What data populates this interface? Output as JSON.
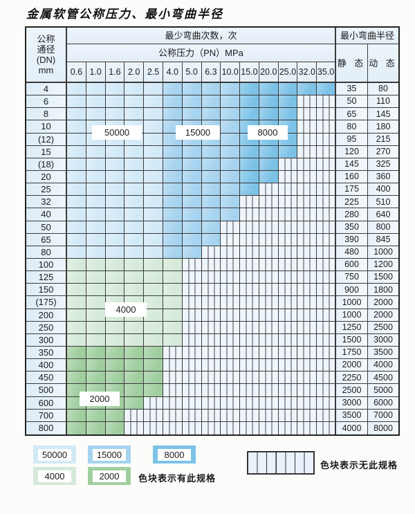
{
  "title": "金属软管公称压力、最小弯曲半径",
  "table": {
    "header": {
      "dn_label_lines": [
        "公称",
        "通径",
        "(DN)",
        "mm"
      ],
      "cycles_label": "最少弯曲次数，次",
      "pressure_label": "公称压力（PN）MPa",
      "pressures": [
        "0.6",
        "1.0",
        "1.6",
        "2.0",
        "2.5",
        "4.0",
        "5.0",
        "6.3",
        "10.0",
        "15.0",
        "20.0",
        "25.0",
        "32.0",
        "35.0"
      ],
      "radius_label": "最小弯曲半径",
      "static_label": "静 态",
      "dynamic_label": "动 态"
    },
    "overlay_labels": [
      {
        "text": "50000"
      },
      {
        "text": "15000"
      },
      {
        "text": "8000"
      },
      {
        "text": "4000"
      },
      {
        "text": "2000"
      }
    ],
    "rows": [
      {
        "dn": "4",
        "colored": 14,
        "zone": "blue",
        "static": "35",
        "dynamic": "80"
      },
      {
        "dn": "6",
        "colored": 12,
        "zone": "blue",
        "static": "50",
        "dynamic": "110"
      },
      {
        "dn": "8",
        "colored": 12,
        "zone": "blue",
        "static": "65",
        "dynamic": "145"
      },
      {
        "dn": "10",
        "colored": 12,
        "zone": "blue",
        "static": "80",
        "dynamic": "180"
      },
      {
        "dn": "(12)",
        "colored": 12,
        "zone": "blue",
        "static": "95",
        "dynamic": "215"
      },
      {
        "dn": "15",
        "colored": 12,
        "zone": "blue",
        "static": "120",
        "dynamic": "270"
      },
      {
        "dn": "(18)",
        "colored": 11,
        "zone": "blue",
        "static": "145",
        "dynamic": "325"
      },
      {
        "dn": "20",
        "colored": 11,
        "zone": "blue",
        "static": "160",
        "dynamic": "360"
      },
      {
        "dn": "25",
        "colored": 10,
        "zone": "blue",
        "static": "175",
        "dynamic": "400"
      },
      {
        "dn": "32",
        "colored": 9,
        "zone": "blue",
        "static": "225",
        "dynamic": "510"
      },
      {
        "dn": "40",
        "colored": 9,
        "zone": "blue",
        "static": "280",
        "dynamic": "640"
      },
      {
        "dn": "50",
        "colored": 8,
        "zone": "blue",
        "static": "350",
        "dynamic": "800"
      },
      {
        "dn": "65",
        "colored": 8,
        "zone": "blue",
        "static": "390",
        "dynamic": "845"
      },
      {
        "dn": "80",
        "colored": 7,
        "zone": "blue",
        "static": "480",
        "dynamic": "1000"
      },
      {
        "dn": "100",
        "colored": 6,
        "zone": "green4000",
        "static": "600",
        "dynamic": "1200"
      },
      {
        "dn": "125",
        "colored": 6,
        "zone": "green4000",
        "static": "750",
        "dynamic": "1500"
      },
      {
        "dn": "150",
        "colored": 6,
        "zone": "green4000",
        "static": "900",
        "dynamic": "1800"
      },
      {
        "dn": "(175)",
        "colored": 6,
        "zone": "green4000",
        "static": "1000",
        "dynamic": "2000"
      },
      {
        "dn": "200",
        "colored": 6,
        "zone": "green4000",
        "static": "1000",
        "dynamic": "2000"
      },
      {
        "dn": "250",
        "colored": 6,
        "zone": "green4000",
        "static": "1250",
        "dynamic": "2500"
      },
      {
        "dn": "300",
        "colored": 6,
        "zone": "green4000",
        "static": "1500",
        "dynamic": "3000"
      },
      {
        "dn": "350",
        "colored": 5,
        "zone": "green2000",
        "static": "1750",
        "dynamic": "3500"
      },
      {
        "dn": "400",
        "colored": 5,
        "zone": "green2000",
        "static": "2000",
        "dynamic": "4000"
      },
      {
        "dn": "450",
        "colored": 5,
        "zone": "green2000",
        "static": "2250",
        "dynamic": "4500"
      },
      {
        "dn": "500",
        "colored": 5,
        "zone": "green2000",
        "static": "2500",
        "dynamic": "5000"
      },
      {
        "dn": "600",
        "colored": 4,
        "zone": "green2000",
        "static": "3000",
        "dynamic": "6000"
      },
      {
        "dn": "700",
        "colored": 3,
        "zone": "green2000",
        "static": "3500",
        "dynamic": "7000"
      },
      {
        "dn": "800",
        "colored": 3,
        "zone": "green2000",
        "static": "4000",
        "dynamic": "8000"
      }
    ]
  },
  "legend": {
    "swatches": [
      {
        "label": "50000",
        "color": "#d2e9f8"
      },
      {
        "label": "15000",
        "color": "#a6d3ef"
      },
      {
        "label": "8000",
        "color": "#7cc2e7"
      },
      {
        "label": "4000",
        "color": "#d6ead9"
      },
      {
        "label": "2000",
        "color": "#a0ce9f"
      }
    ],
    "has_spec_text": "色块表示有此规格",
    "no_spec_text": "色块表示无此规格"
  },
  "chart_data": {
    "type": "table",
    "title": "金属软管公称压力、最小弯曲半径",
    "columns": [
      "DN(mm)",
      "0.6",
      "1.0",
      "1.6",
      "2.0",
      "2.5",
      "4.0",
      "5.0",
      "6.3",
      "10.0",
      "15.0",
      "20.0",
      "25.0",
      "32.0",
      "35.0",
      "静态",
      "动态"
    ],
    "cycle_bands": {
      "blue_rows_by_pn": {
        "0.6-2.5": 50000,
        "4.0-10.0": 15000,
        "15.0-35.0": 8000
      },
      "green_rows_dn_100_300": 4000,
      "green_rows_dn_350_800": 2000,
      "hatched": "无此规格"
    },
    "rows": [
      {
        "dn": "4",
        "max_pn": "35.0",
        "static": 35,
        "dynamic": 80
      },
      {
        "dn": "6",
        "max_pn": "25.0",
        "static": 50,
        "dynamic": 110
      },
      {
        "dn": "8",
        "max_pn": "25.0",
        "static": 65,
        "dynamic": 145
      },
      {
        "dn": "10",
        "max_pn": "25.0",
        "static": 80,
        "dynamic": 180
      },
      {
        "dn": "(12)",
        "max_pn": "25.0",
        "static": 95,
        "dynamic": 215
      },
      {
        "dn": "15",
        "max_pn": "25.0",
        "static": 120,
        "dynamic": 270
      },
      {
        "dn": "(18)",
        "max_pn": "20.0",
        "static": 145,
        "dynamic": 325
      },
      {
        "dn": "20",
        "max_pn": "20.0",
        "static": 160,
        "dynamic": 360
      },
      {
        "dn": "25",
        "max_pn": "15.0",
        "static": 175,
        "dynamic": 400
      },
      {
        "dn": "32",
        "max_pn": "10.0",
        "static": 225,
        "dynamic": 510
      },
      {
        "dn": "40",
        "max_pn": "10.0",
        "static": 280,
        "dynamic": 640
      },
      {
        "dn": "50",
        "max_pn": "6.3",
        "static": 350,
        "dynamic": 800
      },
      {
        "dn": "65",
        "max_pn": "6.3",
        "static": 390,
        "dynamic": 845
      },
      {
        "dn": "80",
        "max_pn": "5.0",
        "static": 480,
        "dynamic": 1000
      },
      {
        "dn": "100",
        "max_pn": "4.0",
        "static": 600,
        "dynamic": 1200
      },
      {
        "dn": "125",
        "max_pn": "4.0",
        "static": 750,
        "dynamic": 1500
      },
      {
        "dn": "150",
        "max_pn": "4.0",
        "static": 900,
        "dynamic": 1800
      },
      {
        "dn": "(175)",
        "max_pn": "4.0",
        "static": 1000,
        "dynamic": 2000
      },
      {
        "dn": "200",
        "max_pn": "4.0",
        "static": 1000,
        "dynamic": 2000
      },
      {
        "dn": "250",
        "max_pn": "4.0",
        "static": 1250,
        "dynamic": 2500
      },
      {
        "dn": "300",
        "max_pn": "4.0",
        "static": 1500,
        "dynamic": 3000
      },
      {
        "dn": "350",
        "max_pn": "2.5",
        "static": 1750,
        "dynamic": 3500
      },
      {
        "dn": "400",
        "max_pn": "2.5",
        "static": 2000,
        "dynamic": 4000
      },
      {
        "dn": "450",
        "max_pn": "2.5",
        "static": 2250,
        "dynamic": 4500
      },
      {
        "dn": "500",
        "max_pn": "2.5",
        "static": 2500,
        "dynamic": 5000
      },
      {
        "dn": "600",
        "max_pn": "2.0",
        "static": 3000,
        "dynamic": 6000
      },
      {
        "dn": "700",
        "max_pn": "1.6",
        "static": 3500,
        "dynamic": 7000
      },
      {
        "dn": "800",
        "max_pn": "1.6",
        "static": 4000,
        "dynamic": 8000
      }
    ]
  }
}
